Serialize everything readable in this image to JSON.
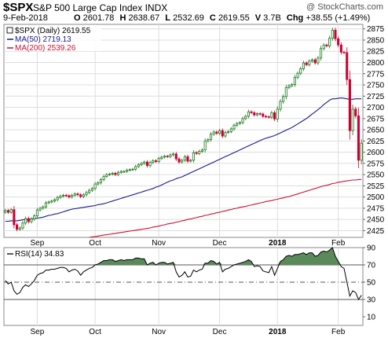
{
  "header": {
    "symbol": "$SPX",
    "name": "S&P 500 Large Cap Index",
    "exchange": "INDX",
    "watermark": "@ StockCharts.com",
    "date": "9-Feb-2018",
    "open_label": "O",
    "open": "2601.78",
    "high_label": "H",
    "high": "2638.67",
    "low_label": "L",
    "low": "2532.69",
    "close_label": "C",
    "close": "2619.55",
    "volume_label": "V",
    "volume": "3.7B",
    "change_label": "Chg",
    "change": "+38.55 (+1.49%)"
  },
  "legend": {
    "price": "$SPX (Daily) 2619.55",
    "ma50": "MA(50) 2719.13",
    "ma200": "MA(200) 2539.26",
    "rsi": "RSI(14) 34.83"
  },
  "colors": {
    "up": "#1a7a1a",
    "down": "#cc0033",
    "ma50": "#1a1a8c",
    "ma200": "#cc1133",
    "rsi_fill": "#5a8a5a",
    "grid": "#dddddd"
  },
  "chart_data": [
    {
      "type": "candlestick",
      "title": "$SPX (Daily)",
      "ylim": [
        2410,
        2885
      ],
      "yticks": [
        2425,
        2450,
        2475,
        2500,
        2525,
        2550,
        2575,
        2600,
        2625,
        2650,
        2675,
        2700,
        2725,
        2750,
        2775,
        2800,
        2825,
        2850,
        2875
      ],
      "xticks": [
        {
          "label": "Sep",
          "index": 11
        },
        {
          "label": "Oct",
          "index": 31
        },
        {
          "label": "Nov",
          "index": 53
        },
        {
          "label": "Dec",
          "index": 74
        },
        {
          "label": "2018",
          "index": 94
        },
        {
          "label": "Feb",
          "index": 115
        }
      ],
      "series": [
        {
          "name": "$SPX (Daily)",
          "close": [
            2470,
            2466,
            2472,
            2438,
            2428,
            2431,
            2442,
            2452,
            2445,
            2451,
            2458,
            2471,
            2475,
            2478,
            2487,
            2489,
            2491,
            2494,
            2499,
            2502,
            2504,
            2503,
            2500,
            2504,
            2507,
            2505,
            2501,
            2505,
            2510,
            2515,
            2519,
            2529,
            2532,
            2539,
            2546,
            2550,
            2551,
            2553,
            2550,
            2555,
            2557,
            2557,
            2560,
            2561,
            2562,
            2568,
            2572,
            2575,
            2578,
            2570,
            2577,
            2581,
            2579,
            2586,
            2589,
            2591,
            2590,
            2594,
            2596,
            2585,
            2578,
            2582,
            2590,
            2580,
            2582,
            2599,
            2597,
            2602,
            2605,
            2625,
            2628,
            2640,
            2645,
            2642,
            2648,
            2636,
            2644,
            2646,
            2652,
            2660,
            2664,
            2666,
            2675,
            2680,
            2690,
            2688,
            2683,
            2686,
            2685,
            2680,
            2679,
            2678,
            2688,
            2674,
            2696,
            2713,
            2724,
            2744,
            2748,
            2751,
            2767,
            2776,
            2786,
            2799,
            2795,
            2803,
            2806,
            2799,
            2810,
            2831,
            2839,
            2837,
            2854,
            2872,
            2853,
            2839,
            2823,
            2822,
            2762,
            2648,
            2696,
            2681,
            2582,
            2620
          ]
        },
        {
          "name": "MA(50)",
          "values": [
            2446,
            2446,
            2447,
            2447,
            2447,
            2448,
            2449,
            2450,
            2450,
            2451,
            2452,
            2453,
            2454,
            2455,
            2457,
            2459,
            2460,
            2462,
            2463,
            2465,
            2467,
            2469,
            2471,
            2473,
            2474,
            2475,
            2476,
            2477,
            2478,
            2479,
            2480,
            2481,
            2483,
            2484,
            2485,
            2487,
            2489,
            2491,
            2493,
            2495,
            2497,
            2499,
            2501,
            2503,
            2505,
            2507,
            2509,
            2511,
            2513,
            2515,
            2517,
            2519,
            2522,
            2524,
            2527,
            2530,
            2533,
            2536,
            2538,
            2541,
            2543,
            2545,
            2548,
            2551,
            2554,
            2557,
            2560,
            2563,
            2566,
            2569,
            2572,
            2575,
            2578,
            2581,
            2584,
            2587,
            2590,
            2593,
            2596,
            2599,
            2602,
            2605,
            2608,
            2611,
            2614,
            2617,
            2620,
            2623,
            2626,
            2629,
            2631,
            2633,
            2635,
            2637,
            2640,
            2643,
            2646,
            2649,
            2652,
            2655,
            2659,
            2663,
            2667,
            2671,
            2675,
            2680,
            2685,
            2690,
            2695,
            2700,
            2706,
            2711,
            2716,
            2719,
            2719,
            2720,
            2721,
            2720,
            2719,
            2718,
            2718,
            2719,
            2719,
            2719
          ]
        },
        {
          "name": "MA(200)",
          "start": 29,
          "values": [
            2410,
            2411,
            2412,
            2413,
            2414,
            2415,
            2416,
            2417,
            2418,
            2419,
            2420,
            2421,
            2422,
            2423,
            2424,
            2425,
            2426,
            2427,
            2428,
            2429,
            2430,
            2431,
            2433,
            2434,
            2435,
            2437,
            2438,
            2440,
            2441,
            2442,
            2444,
            2445,
            2447,
            2448,
            2450,
            2451,
            2453,
            2454,
            2456,
            2457,
            2459,
            2460,
            2462,
            2463,
            2465,
            2466,
            2468,
            2469,
            2471,
            2472,
            2474,
            2475,
            2477,
            2478,
            2479,
            2481,
            2482,
            2484,
            2485,
            2487,
            2488,
            2490,
            2491,
            2492,
            2494,
            2495,
            2497,
            2498,
            2500,
            2501,
            2503,
            2505,
            2507,
            2509,
            2511,
            2513,
            2515,
            2517,
            2519,
            2521,
            2523,
            2525,
            2526,
            2528,
            2530,
            2531,
            2533,
            2534,
            2535,
            2536,
            2537,
            2538,
            2538,
            2539,
            2539
          ]
        }
      ]
    },
    {
      "type": "line",
      "title": "RSI(14)",
      "ylim": [
        0,
        90
      ],
      "yticks": [
        10,
        30,
        50,
        70,
        90
      ],
      "guides": [
        30,
        50,
        70
      ],
      "xticks": [
        {
          "label": "Sep",
          "index": 11
        },
        {
          "label": "Oct",
          "index": 31
        },
        {
          "label": "Nov",
          "index": 53
        },
        {
          "label": "Dec",
          "index": 74
        },
        {
          "label": "2018",
          "index": 94
        },
        {
          "label": "Feb",
          "index": 115
        }
      ],
      "series": [
        {
          "name": "RSI(14)",
          "values": [
            52,
            48,
            50,
            40,
            36,
            38,
            44,
            47,
            45,
            48,
            52,
            58,
            60,
            61,
            64,
            64,
            65,
            65,
            66,
            67,
            67,
            66,
            62,
            64,
            65,
            63,
            58,
            62,
            64,
            66,
            67,
            70,
            71,
            73,
            75,
            75,
            76,
            76,
            74,
            75,
            76,
            75,
            76,
            76,
            76,
            78,
            78,
            77,
            77,
            70,
            72,
            73,
            70,
            72,
            73,
            73,
            71,
            72,
            73,
            62,
            56,
            58,
            62,
            56,
            57,
            64,
            62,
            64,
            65,
            72,
            72,
            75,
            74,
            71,
            73,
            62,
            65,
            66,
            68,
            70,
            71,
            72,
            73,
            74,
            76,
            74,
            68,
            69,
            68,
            63,
            62,
            61,
            68,
            58,
            66,
            74,
            76,
            80,
            81,
            80,
            82,
            82,
            83,
            84,
            82,
            84,
            84,
            80,
            81,
            85,
            86,
            85,
            87,
            90,
            80,
            74,
            68,
            66,
            50,
            34,
            40,
            38,
            30,
            34.83
          ]
        }
      ]
    }
  ]
}
